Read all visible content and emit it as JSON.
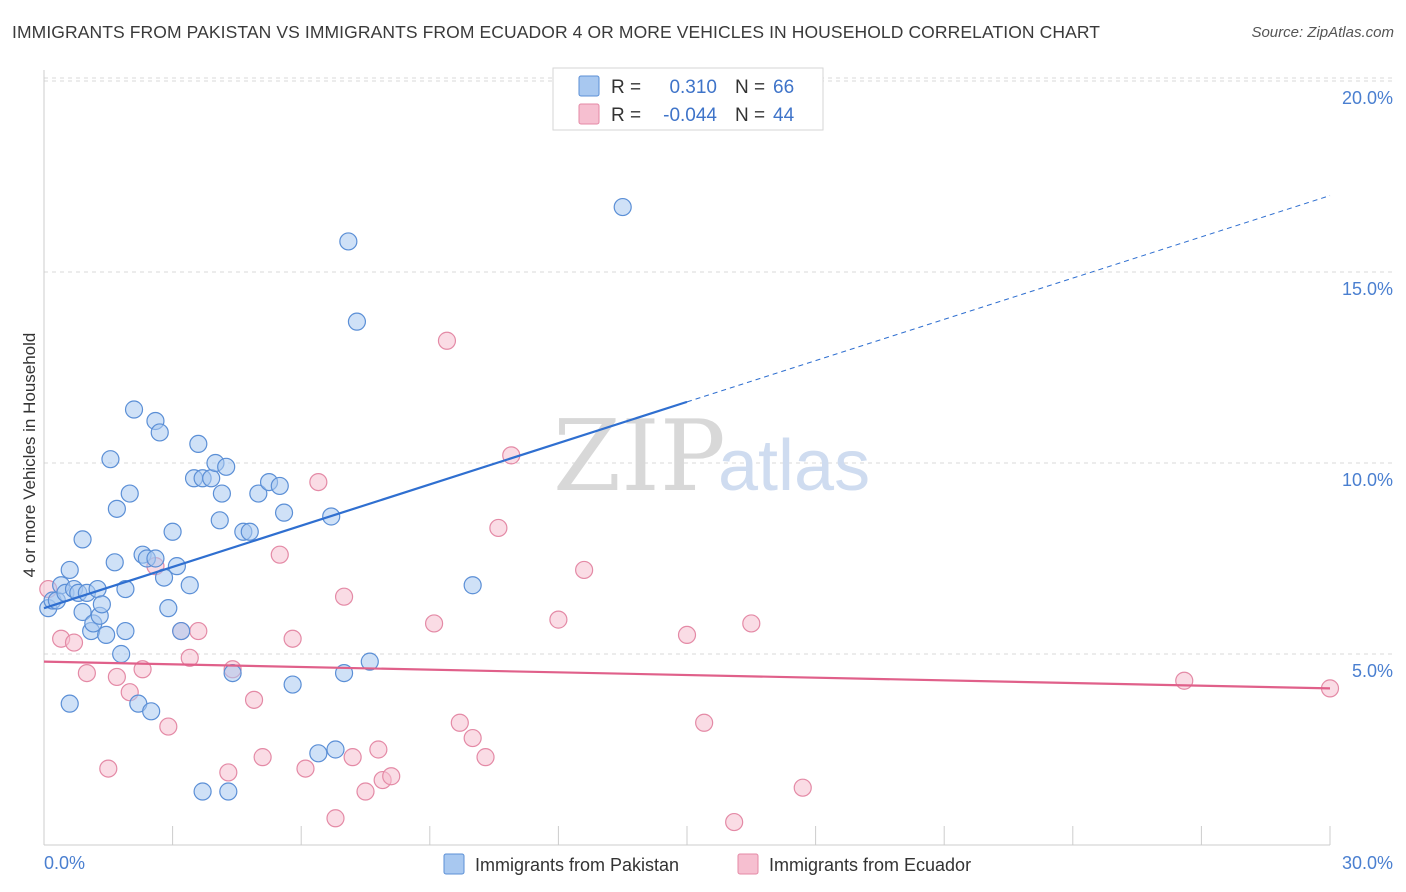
{
  "title": "IMMIGRANTS FROM PAKISTAN VS IMMIGRANTS FROM ECUADOR 4 OR MORE VEHICLES IN HOUSEHOLD CORRELATION CHART",
  "source": "Source: ZipAtlas.com",
  "watermark": {
    "zip": "ZIP",
    "atlas": "atlas"
  },
  "colors": {
    "pakistan_fill": "#a8c8f0",
    "pakistan_stroke": "#5b8fd6",
    "pakistan_line": "#2f6fd0",
    "ecuador_fill": "#f6bfd0",
    "ecuador_stroke": "#e48aa6",
    "ecuador_line": "#e0608a",
    "tick_text": "#4a7fd0",
    "grid": "#d9d9d9"
  },
  "legend": {
    "rows": [
      {
        "r_label": "R = ",
        "r_value": "0.310",
        "n_label": "N = ",
        "n_value": "66"
      },
      {
        "r_label": "R = ",
        "r_value": "-0.044",
        "n_label": "N = ",
        "n_value": "44"
      }
    ]
  },
  "chart_data": {
    "type": "scatter",
    "title": "IMMIGRANTS FROM PAKISTAN VS IMMIGRANTS FROM ECUADOR 4 OR MORE VEHICLES IN HOUSEHOLD CORRELATION CHART",
    "xlabel": "",
    "ylabel": "4 or more Vehicles in Household",
    "xlim": [
      0,
      30
    ],
    "ylim": [
      0,
      20.5
    ],
    "x_tick_labels": [
      "0.0%",
      "30.0%"
    ],
    "y_ticks": [
      5,
      10,
      15,
      20
    ],
    "y_tick_labels": [
      "5.0%",
      "10.0%",
      "15.0%",
      "20.0%"
    ],
    "series": [
      {
        "name": "Immigrants from Pakistan",
        "R": 0.31,
        "N": 66,
        "trend": {
          "x0": 0,
          "y0": 6.2,
          "x1": 15,
          "y1": 11.6,
          "dashed_to_x": 30,
          "dashed_to_y": 17
        },
        "points": [
          [
            0.1,
            6.2
          ],
          [
            0.2,
            6.4
          ],
          [
            0.3,
            6.4
          ],
          [
            0.4,
            6.8
          ],
          [
            0.5,
            6.6
          ],
          [
            0.6,
            7.2
          ],
          [
            0.6,
            3.7
          ],
          [
            0.7,
            6.7
          ],
          [
            0.8,
            6.6
          ],
          [
            0.9,
            6.1
          ],
          [
            0.9,
            8.0
          ],
          [
            1.0,
            6.6
          ],
          [
            1.1,
            5.6
          ],
          [
            1.15,
            5.8
          ],
          [
            1.25,
            6.7
          ],
          [
            1.3,
            6.0
          ],
          [
            1.35,
            6.3
          ],
          [
            1.45,
            5.5
          ],
          [
            1.55,
            10.1
          ],
          [
            1.65,
            7.4
          ],
          [
            1.7,
            8.8
          ],
          [
            1.8,
            5.0
          ],
          [
            1.9,
            6.7
          ],
          [
            1.9,
            5.6
          ],
          [
            2.0,
            9.2
          ],
          [
            2.1,
            11.4
          ],
          [
            2.2,
            3.7
          ],
          [
            2.3,
            7.6
          ],
          [
            2.4,
            7.5
          ],
          [
            2.5,
            3.5
          ],
          [
            2.6,
            11.1
          ],
          [
            2.6,
            7.5
          ],
          [
            2.7,
            10.8
          ],
          [
            2.8,
            7.0
          ],
          [
            2.9,
            6.2
          ],
          [
            3.0,
            8.2
          ],
          [
            3.1,
            7.3
          ],
          [
            3.2,
            5.6
          ],
          [
            3.4,
            6.8
          ],
          [
            3.5,
            9.6
          ],
          [
            3.6,
            10.5
          ],
          [
            3.7,
            9.6
          ],
          [
            3.7,
            1.4
          ],
          [
            3.9,
            9.6
          ],
          [
            4.0,
            10.0
          ],
          [
            4.1,
            8.5
          ],
          [
            4.15,
            9.2
          ],
          [
            4.25,
            9.9
          ],
          [
            4.3,
            1.4
          ],
          [
            4.4,
            4.5
          ],
          [
            4.65,
            8.2
          ],
          [
            4.8,
            8.2
          ],
          [
            5.0,
            9.2
          ],
          [
            5.25,
            9.5
          ],
          [
            5.5,
            9.4
          ],
          [
            5.6,
            8.7
          ],
          [
            5.8,
            4.2
          ],
          [
            6.4,
            2.4
          ],
          [
            6.7,
            8.6
          ],
          [
            6.8,
            2.5
          ],
          [
            7.0,
            4.5
          ],
          [
            7.1,
            15.8
          ],
          [
            7.3,
            13.7
          ],
          [
            7.6,
            4.8
          ],
          [
            10.0,
            6.8
          ],
          [
            13.5,
            16.7
          ]
        ]
      },
      {
        "name": "Immigrants from Ecuador",
        "R": -0.044,
        "N": 44,
        "trend": {
          "x0": 0,
          "y0": 4.8,
          "x1": 30,
          "y1": 4.1
        },
        "points": [
          [
            0.1,
            6.7
          ],
          [
            0.4,
            5.4
          ],
          [
            0.7,
            5.3
          ],
          [
            1.0,
            4.5
          ],
          [
            1.5,
            2.0
          ],
          [
            1.7,
            4.4
          ],
          [
            2.0,
            4.0
          ],
          [
            2.3,
            4.6
          ],
          [
            2.6,
            7.3
          ],
          [
            2.9,
            3.1
          ],
          [
            3.2,
            5.6
          ],
          [
            3.6,
            5.6
          ],
          [
            3.4,
            4.9
          ],
          [
            4.4,
            4.6
          ],
          [
            4.3,
            1.9
          ],
          [
            4.9,
            3.8
          ],
          [
            5.1,
            2.3
          ],
          [
            5.5,
            7.6
          ],
          [
            5.8,
            5.4
          ],
          [
            6.1,
            2.0
          ],
          [
            6.4,
            9.5
          ],
          [
            6.8,
            0.7
          ],
          [
            7.0,
            6.5
          ],
          [
            7.2,
            2.3
          ],
          [
            7.5,
            1.4
          ],
          [
            7.8,
            2.5
          ],
          [
            7.9,
            1.7
          ],
          [
            8.1,
            1.8
          ],
          [
            9.1,
            5.8
          ],
          [
            9.4,
            13.2
          ],
          [
            9.7,
            3.2
          ],
          [
            10.0,
            2.8
          ],
          [
            10.3,
            2.3
          ],
          [
            10.6,
            8.3
          ],
          [
            10.9,
            10.2
          ],
          [
            12.0,
            5.9
          ],
          [
            12.6,
            7.2
          ],
          [
            15.0,
            5.5
          ],
          [
            15.4,
            3.2
          ],
          [
            16.1,
            0.6
          ],
          [
            16.5,
            5.8
          ],
          [
            17.7,
            1.5
          ],
          [
            26.6,
            4.3
          ],
          [
            30.0,
            4.1
          ]
        ]
      }
    ]
  }
}
